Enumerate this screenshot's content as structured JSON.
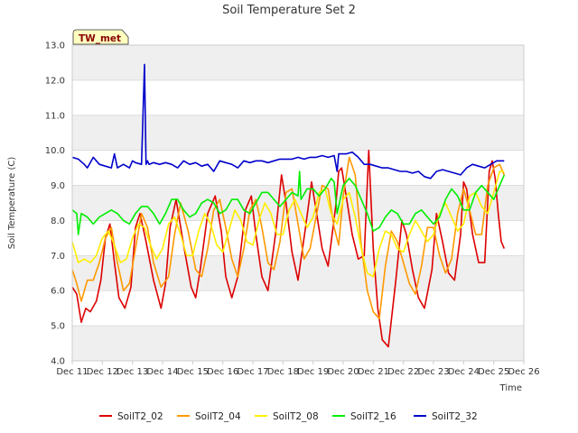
{
  "chart_data": {
    "type": "line",
    "title": "Soil Temperature Set 2",
    "xlabel": "Time",
    "ylabel": "Soil Temperature (C)",
    "ylim": [
      4.0,
      13.0
    ],
    "xlim": [
      11,
      26
    ],
    "yticks": [
      "4.0",
      "5.0",
      "6.0",
      "7.0",
      "8.0",
      "9.0",
      "10.0",
      "11.0",
      "12.0",
      "13.0"
    ],
    "xticks": [
      "Dec 11",
      "Dec 12",
      "Dec 13",
      "Dec 14",
      "Dec 15",
      "Dec 16",
      "Dec 17",
      "Dec 18",
      "Dec 19",
      "Dec 20",
      "Dec 21",
      "Dec 22",
      "Dec 23",
      "Dec 24",
      "Dec 25",
      "Dec 26"
    ],
    "grid": "horizontal alternating bands",
    "legend_position": "bottom",
    "annotation": "TW_met",
    "series": [
      {
        "name": "SoilT2_02",
        "color": "#dd0000",
        "x": [
          11.0,
          11.15,
          11.3,
          11.45,
          11.6,
          11.8,
          11.95,
          12.1,
          12.25,
          12.4,
          12.55,
          12.75,
          12.95,
          13.1,
          13.25,
          13.45,
          13.7,
          13.95,
          14.1,
          14.25,
          14.45,
          14.7,
          14.95,
          15.1,
          15.25,
          15.5,
          15.75,
          15.95,
          16.1,
          16.3,
          16.5,
          16.75,
          16.95,
          17.1,
          17.3,
          17.5,
          17.75,
          17.95,
          18.1,
          18.3,
          18.5,
          18.75,
          18.95,
          19.1,
          19.3,
          19.5,
          19.75,
          19.85,
          19.95,
          20.1,
          20.3,
          20.5,
          20.7,
          20.85,
          21.0,
          21.15,
          21.3,
          21.5,
          21.75,
          21.95,
          22.1,
          22.3,
          22.5,
          22.7,
          22.95,
          23.1,
          23.3,
          23.5,
          23.7,
          23.9,
          24.0,
          24.1,
          24.3,
          24.5,
          24.7,
          24.85,
          24.95,
          25.05,
          25.15,
          25.25,
          25.35
        ],
        "y": [
          6.1,
          5.9,
          5.1,
          5.5,
          5.4,
          5.7,
          6.3,
          7.5,
          7.9,
          6.8,
          5.8,
          5.5,
          6.1,
          7.8,
          8.2,
          7.4,
          6.3,
          5.5,
          6.2,
          7.8,
          8.6,
          7.3,
          6.1,
          5.8,
          6.6,
          8.2,
          8.7,
          7.7,
          6.4,
          5.8,
          6.4,
          8.3,
          8.7,
          7.6,
          6.4,
          6.0,
          7.6,
          9.3,
          8.5,
          7.1,
          6.3,
          7.8,
          9.1,
          8.3,
          7.2,
          6.7,
          8.4,
          9.4,
          9.5,
          8.7,
          7.6,
          6.9,
          7.0,
          10.0,
          7.2,
          5.5,
          4.6,
          4.4,
          6.3,
          8.0,
          7.6,
          6.6,
          5.8,
          5.5,
          6.6,
          8.2,
          7.4,
          6.5,
          6.3,
          7.6,
          9.1,
          8.9,
          7.6,
          6.8,
          6.8,
          9.4,
          9.7,
          9.2,
          8.2,
          7.4,
          7.2
        ]
      },
      {
        "name": "SoilT2_04",
        "color": "#ff9900",
        "x": [
          11.0,
          11.15,
          11.3,
          11.5,
          11.7,
          11.9,
          12.1,
          12.3,
          12.5,
          12.7,
          12.9,
          13.1,
          13.3,
          13.5,
          13.7,
          13.95,
          14.2,
          14.4,
          14.6,
          14.85,
          15.1,
          15.3,
          15.5,
          15.7,
          15.9,
          16.1,
          16.3,
          16.5,
          16.7,
          16.9,
          17.1,
          17.3,
          17.5,
          17.7,
          17.9,
          18.1,
          18.3,
          18.5,
          18.7,
          18.9,
          19.1,
          19.3,
          19.5,
          19.7,
          19.85,
          20.0,
          20.2,
          20.4,
          20.6,
          20.8,
          21.0,
          21.2,
          21.4,
          21.6,
          21.8,
          22.0,
          22.2,
          22.4,
          22.6,
          22.8,
          23.0,
          23.2,
          23.4,
          23.6,
          23.8,
          24.0,
          24.2,
          24.4,
          24.6,
          24.8,
          25.0,
          25.2,
          25.35
        ],
        "y": [
          6.6,
          6.2,
          5.7,
          6.3,
          6.3,
          6.8,
          7.5,
          7.8,
          6.8,
          6.0,
          6.2,
          7.2,
          8.2,
          7.8,
          6.8,
          6.1,
          6.4,
          7.6,
          8.5,
          7.7,
          6.6,
          6.4,
          7.2,
          8.3,
          8.6,
          7.8,
          6.9,
          6.4,
          7.2,
          8.3,
          8.6,
          7.8,
          6.8,
          6.6,
          7.4,
          8.8,
          8.9,
          7.9,
          6.9,
          7.2,
          8.1,
          9.0,
          8.9,
          7.8,
          7.3,
          8.7,
          9.8,
          9.3,
          7.3,
          6.0,
          5.4,
          5.2,
          6.7,
          7.7,
          7.4,
          6.8,
          6.2,
          5.9,
          6.7,
          7.8,
          7.8,
          7.0,
          6.5,
          6.9,
          8.2,
          8.9,
          8.3,
          7.6,
          7.6,
          9.0,
          9.5,
          9.6,
          9.3
        ]
      },
      {
        "name": "SoilT2_08",
        "color": "#ffee00",
        "x": [
          11.0,
          11.2,
          11.4,
          11.6,
          11.8,
          12.0,
          12.2,
          12.4,
          12.6,
          12.8,
          13.0,
          13.2,
          13.4,
          13.6,
          13.8,
          14.0,
          14.2,
          14.4,
          14.6,
          14.8,
          15.0,
          15.2,
          15.4,
          15.6,
          15.8,
          16.0,
          16.2,
          16.4,
          16.6,
          16.8,
          17.0,
          17.2,
          17.4,
          17.6,
          17.8,
          18.0,
          18.2,
          18.4,
          18.6,
          18.8,
          19.0,
          19.2,
          19.4,
          19.6,
          19.8,
          20.0,
          20.2,
          20.4,
          20.6,
          20.8,
          21.0,
          21.2,
          21.4,
          21.6,
          21.8,
          22.0,
          22.2,
          22.4,
          22.6,
          22.8,
          23.0,
          23.2,
          23.4,
          23.6,
          23.8,
          24.0,
          24.2,
          24.4,
          24.6,
          24.8,
          25.0,
          25.2,
          25.35
        ],
        "y": [
          7.4,
          6.8,
          6.9,
          6.8,
          7.0,
          7.5,
          7.7,
          7.3,
          6.8,
          6.9,
          7.5,
          7.9,
          7.8,
          7.3,
          6.9,
          7.2,
          7.9,
          8.1,
          7.6,
          7.0,
          7.0,
          7.7,
          8.2,
          7.9,
          7.3,
          7.1,
          7.7,
          8.3,
          8.0,
          7.4,
          7.3,
          8.0,
          8.5,
          8.2,
          7.6,
          7.6,
          8.3,
          8.6,
          8.2,
          7.8,
          8.1,
          8.8,
          8.9,
          8.2,
          7.9,
          8.6,
          8.8,
          8.1,
          7.2,
          6.5,
          6.4,
          7.2,
          7.7,
          7.6,
          7.2,
          7.1,
          7.6,
          8.0,
          7.7,
          7.4,
          7.6,
          8.2,
          8.5,
          8.1,
          7.7,
          7.9,
          8.7,
          8.8,
          8.4,
          8.2,
          8.8,
          9.4,
          9.4
        ]
      },
      {
        "name": "SoilT2_16",
        "color": "#00ee00",
        "x": [
          11.0,
          11.15,
          11.2,
          11.3,
          11.5,
          11.7,
          11.9,
          12.1,
          12.3,
          12.5,
          12.7,
          12.9,
          13.1,
          13.3,
          13.5,
          13.7,
          13.9,
          14.1,
          14.3,
          14.5,
          14.7,
          14.9,
          15.1,
          15.3,
          15.5,
          15.7,
          15.9,
          16.1,
          16.3,
          16.5,
          16.7,
          16.9,
          17.1,
          17.3,
          17.5,
          17.7,
          17.9,
          18.1,
          18.3,
          18.5,
          18.55,
          18.6,
          18.8,
          19.0,
          19.2,
          19.4,
          19.6,
          19.7,
          19.8,
          20.0,
          20.2,
          20.4,
          20.6,
          20.8,
          21.0,
          21.2,
          21.4,
          21.6,
          21.8,
          22.0,
          22.2,
          22.4,
          22.6,
          22.8,
          23.0,
          23.2,
          23.4,
          23.6,
          23.8,
          24.0,
          24.2,
          24.4,
          24.6,
          24.8,
          25.0,
          25.2,
          25.35
        ],
        "y": [
          8.3,
          8.2,
          7.6,
          8.2,
          8.1,
          7.9,
          8.1,
          8.2,
          8.3,
          8.2,
          8.0,
          7.9,
          8.2,
          8.4,
          8.4,
          8.2,
          7.9,
          8.2,
          8.6,
          8.6,
          8.3,
          8.1,
          8.2,
          8.5,
          8.6,
          8.5,
          8.2,
          8.3,
          8.6,
          8.6,
          8.3,
          8.2,
          8.5,
          8.8,
          8.8,
          8.6,
          8.4,
          8.6,
          8.8,
          8.7,
          9.4,
          8.6,
          8.9,
          8.9,
          8.7,
          8.9,
          9.2,
          9.1,
          8.2,
          9.0,
          9.2,
          9.0,
          8.6,
          8.2,
          7.7,
          7.8,
          8.1,
          8.3,
          8.2,
          7.9,
          7.9,
          8.2,
          8.3,
          8.1,
          7.9,
          8.1,
          8.6,
          8.9,
          8.7,
          8.3,
          8.3,
          8.8,
          9.0,
          8.8,
          8.6,
          9.0,
          9.3
        ]
      },
      {
        "name": "SoilT2_32",
        "color": "#0000cc",
        "x": [
          11.0,
          11.2,
          11.4,
          11.5,
          11.7,
          11.9,
          12.1,
          12.3,
          12.4,
          12.5,
          12.7,
          12.9,
          13.0,
          13.1,
          13.3,
          13.4,
          13.45,
          13.5,
          13.55,
          13.7,
          13.9,
          14.1,
          14.3,
          14.5,
          14.7,
          14.9,
          15.1,
          15.3,
          15.5,
          15.7,
          15.9,
          16.1,
          16.3,
          16.5,
          16.7,
          16.9,
          17.1,
          17.3,
          17.5,
          17.7,
          17.9,
          18.1,
          18.3,
          18.5,
          18.7,
          18.9,
          19.1,
          19.3,
          19.5,
          19.7,
          19.8,
          19.85,
          19.9,
          20.1,
          20.3,
          20.5,
          20.7,
          20.9,
          21.1,
          21.3,
          21.5,
          21.7,
          21.9,
          22.1,
          22.3,
          22.5,
          22.7,
          22.9,
          23.1,
          23.3,
          23.5,
          23.7,
          23.9,
          24.1,
          24.3,
          24.5,
          24.7,
          24.9,
          25.1,
          25.35
        ],
        "y": [
          9.8,
          9.75,
          9.6,
          9.5,
          9.8,
          9.6,
          9.55,
          9.5,
          9.9,
          9.5,
          9.6,
          9.5,
          9.7,
          9.65,
          9.6,
          12.45,
          9.6,
          9.7,
          9.6,
          9.65,
          9.6,
          9.65,
          9.6,
          9.5,
          9.7,
          9.6,
          9.65,
          9.55,
          9.6,
          9.4,
          9.7,
          9.65,
          9.6,
          9.5,
          9.7,
          9.65,
          9.7,
          9.7,
          9.65,
          9.7,
          9.75,
          9.75,
          9.75,
          9.8,
          9.75,
          9.8,
          9.8,
          9.85,
          9.8,
          9.85,
          9.4,
          9.9,
          9.9,
          9.9,
          9.95,
          9.8,
          9.6,
          9.6,
          9.55,
          9.5,
          9.5,
          9.45,
          9.4,
          9.4,
          9.35,
          9.4,
          9.25,
          9.2,
          9.4,
          9.45,
          9.4,
          9.35,
          9.3,
          9.5,
          9.6,
          9.55,
          9.5,
          9.6,
          9.7,
          9.7
        ]
      }
    ]
  }
}
